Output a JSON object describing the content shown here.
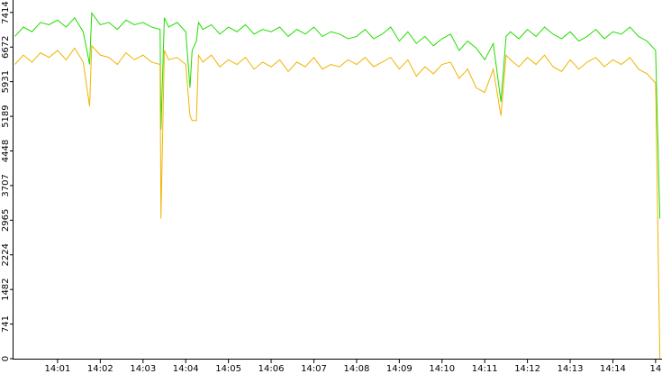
{
  "chart_data": {
    "type": "line",
    "x": [
      0,
      0.2,
      0.4,
      0.6,
      0.8,
      1.0,
      1.2,
      1.4,
      1.6,
      1.75,
      1.8,
      2.0,
      2.2,
      2.4,
      2.6,
      2.8,
      3.0,
      3.2,
      3.4,
      3.42,
      3.5,
      3.6,
      3.8,
      4.0,
      4.1,
      4.15,
      4.25,
      4.3,
      4.4,
      4.6,
      4.8,
      5.0,
      5.2,
      5.4,
      5.6,
      5.8,
      6.0,
      6.2,
      6.4,
      6.6,
      6.8,
      7.0,
      7.2,
      7.4,
      7.6,
      7.8,
      8.0,
      8.2,
      8.4,
      8.6,
      8.8,
      9.0,
      9.2,
      9.4,
      9.6,
      9.8,
      10.0,
      10.2,
      10.4,
      10.6,
      10.8,
      11.0,
      11.2,
      11.38,
      11.5,
      11.6,
      11.8,
      12.0,
      12.2,
      12.4,
      12.6,
      12.8,
      13.0,
      13.2,
      13.4,
      13.6,
      13.8,
      14.0,
      14.2,
      14.4,
      14.6,
      14.8,
      15.0,
      15.1
    ],
    "series": [
      {
        "color": "#22dd00",
        "values": [
          6900,
          7100,
          7000,
          7200,
          7150,
          7250,
          7100,
          7300,
          7000,
          6300,
          7400,
          7150,
          7200,
          7050,
          7250,
          7150,
          7200,
          7100,
          7050,
          4900,
          7300,
          7100,
          7200,
          7000,
          5800,
          6600,
          6800,
          7200,
          7050,
          7150,
          6950,
          7100,
          7000,
          7150,
          6950,
          7050,
          7000,
          7100,
          6900,
          7050,
          6950,
          7100,
          6900,
          7000,
          6950,
          6850,
          6900,
          7050,
          6850,
          6950,
          7100,
          6800,
          7000,
          6750,
          6900,
          6700,
          6850,
          6950,
          6600,
          6800,
          6650,
          6400,
          6750,
          5500,
          6900,
          7000,
          6850,
          7050,
          6900,
          7100,
          6950,
          6850,
          7000,
          6800,
          6900,
          7050,
          6850,
          7000,
          6950,
          7100,
          6900,
          6800,
          6600,
          3000
        ]
      },
      {
        "color": "#f0b400",
        "values": [
          6300,
          6500,
          6350,
          6550,
          6450,
          6600,
          6400,
          6650,
          6350,
          5400,
          6700,
          6500,
          6450,
          6300,
          6550,
          6400,
          6500,
          6350,
          6300,
          3000,
          6600,
          6400,
          6450,
          6300,
          5200,
          5100,
          5100,
          6500,
          6350,
          6500,
          6250,
          6400,
          6300,
          6450,
          6200,
          6350,
          6250,
          6400,
          6150,
          6350,
          6250,
          6450,
          6200,
          6300,
          6250,
          6400,
          6300,
          6450,
          6250,
          6350,
          6450,
          6200,
          6400,
          6050,
          6250,
          6100,
          6300,
          6350,
          6000,
          6200,
          5800,
          5700,
          6200,
          5200,
          6500,
          6400,
          6250,
          6450,
          6300,
          6500,
          6250,
          6150,
          6400,
          6200,
          6350,
          6450,
          6250,
          6400,
          6300,
          6450,
          6200,
          6100,
          5900,
          0
        ]
      }
    ],
    "xlim": [
      0,
      15.15
    ],
    "ylim": [
      0,
      7680
    ],
    "yticks": [
      0,
      741,
      1482,
      2224,
      2965,
      3707,
      4448,
      5189,
      5931,
      6672,
      7414
    ],
    "xticks": [
      {
        "value": 1,
        "label": "14:01"
      },
      {
        "value": 2,
        "label": "14:02"
      },
      {
        "value": 3,
        "label": "14:03"
      },
      {
        "value": 4,
        "label": "14:04"
      },
      {
        "value": 5,
        "label": "14:05"
      },
      {
        "value": 6,
        "label": "14:06"
      },
      {
        "value": 7,
        "label": "14:07"
      },
      {
        "value": 8,
        "label": "14:08"
      },
      {
        "value": 9,
        "label": "14:09"
      },
      {
        "value": 10,
        "label": "14:10"
      },
      {
        "value": 11,
        "label": "14:11"
      },
      {
        "value": 12,
        "label": "14:12"
      },
      {
        "value": 13,
        "label": "14:13"
      },
      {
        "value": 14,
        "label": "14:14"
      },
      {
        "value": 15,
        "label": "14"
      }
    ]
  }
}
